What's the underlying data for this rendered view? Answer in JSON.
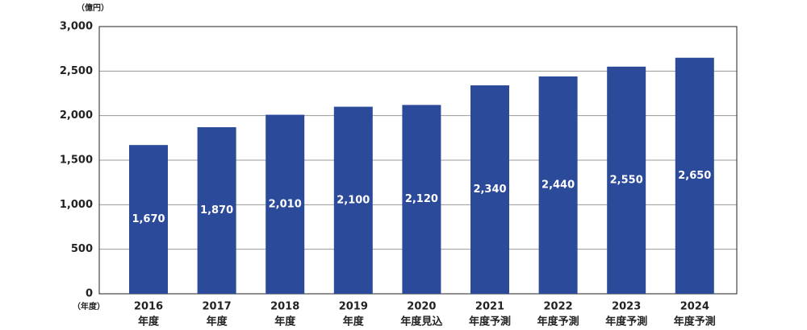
{
  "chart_data": {
    "type": "bar",
    "y_unit": "（億円）",
    "x_unit": "（年度）",
    "categories": [
      [
        "2016",
        "年度"
      ],
      [
        "2017",
        "年度"
      ],
      [
        "2018",
        "年度"
      ],
      [
        "2019",
        "年度"
      ],
      [
        "2020",
        "年度見込"
      ],
      [
        "2021",
        "年度予測"
      ],
      [
        "2022",
        "年度予測"
      ],
      [
        "2023",
        "年度予測"
      ],
      [
        "2024",
        "年度予測"
      ]
    ],
    "values": [
      1670,
      1870,
      2010,
      2100,
      2120,
      2340,
      2440,
      2550,
      2650
    ],
    "value_labels": [
      "1,670",
      "1,870",
      "2,010",
      "2,100",
      "2,120",
      "2,340",
      "2,440",
      "2,550",
      "2,650"
    ],
    "color": "#2c4a9a",
    "ylim": [
      0,
      3000
    ],
    "yticks": [
      0,
      500,
      {
        "value": 1000,
        "label": "1,000"
      },
      {
        "value": 1500,
        "label": "1,500"
      },
      {
        "value": 2000,
        "label": "2,000"
      },
      {
        "value": 2500,
        "label": "2,500"
      },
      {
        "value": 3000,
        "label": "3,000"
      }
    ],
    "grid": true
  }
}
